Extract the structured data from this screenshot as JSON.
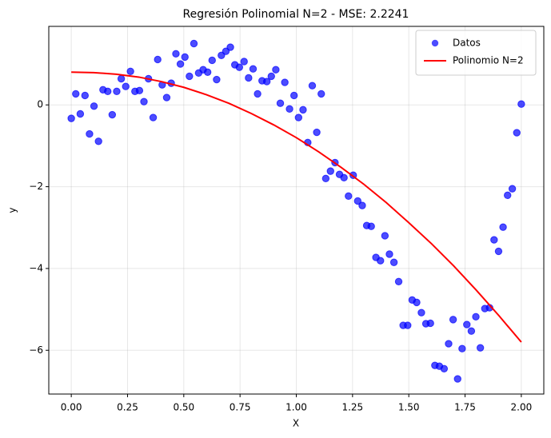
{
  "chart_data": {
    "type": "scatter",
    "title": "Regresión Polinomial N=2 - MSE: 2.2241",
    "xlabel": "X",
    "ylabel": "y",
    "xlim": [
      -0.1,
      2.1
    ],
    "ylim": [
      -7.07,
      1.92
    ],
    "xticks": [
      {
        "value": 0,
        "label": "0.00"
      },
      {
        "value": 0.25,
        "label": "0.25"
      },
      {
        "value": 0.5,
        "label": "0.50"
      },
      {
        "value": 0.75,
        "label": "0.75"
      },
      {
        "value": 1,
        "label": "1.00"
      },
      {
        "value": 1.25,
        "label": "1.25"
      },
      {
        "value": 1.5,
        "label": "1.50"
      },
      {
        "value": 1.75,
        "label": "1.75"
      },
      {
        "value": 2,
        "label": "2.00"
      }
    ],
    "yticks": [
      {
        "value": -6,
        "label": "−6"
      },
      {
        "value": -4,
        "label": "−4"
      },
      {
        "value": -2,
        "label": "−2"
      },
      0
    ],
    "grid": true,
    "legend": "upper right",
    "series": [
      {
        "name": "Datos",
        "type": "scatter",
        "color": "#0000ff",
        "x": [
          0.0,
          0.02,
          0.04,
          0.061,
          0.081,
          0.101,
          0.121,
          0.141,
          0.162,
          0.182,
          0.202,
          0.222,
          0.242,
          0.263,
          0.283,
          0.303,
          0.323,
          0.343,
          0.364,
          0.384,
          0.404,
          0.424,
          0.444,
          0.465,
          0.485,
          0.505,
          0.525,
          0.545,
          0.566,
          0.586,
          0.606,
          0.626,
          0.646,
          0.667,
          0.687,
          0.707,
          0.727,
          0.747,
          0.768,
          0.788,
          0.808,
          0.828,
          0.848,
          0.869,
          0.889,
          0.909,
          0.929,
          0.949,
          0.97,
          0.99,
          1.01,
          1.03,
          1.051,
          1.071,
          1.091,
          1.111,
          1.131,
          1.152,
          1.172,
          1.192,
          1.212,
          1.232,
          1.253,
          1.273,
          1.293,
          1.313,
          1.333,
          1.354,
          1.374,
          1.394,
          1.414,
          1.434,
          1.455,
          1.475,
          1.495,
          1.515,
          1.535,
          1.556,
          1.576,
          1.596,
          1.616,
          1.636,
          1.657,
          1.677,
          1.697,
          1.717,
          1.737,
          1.758,
          1.778,
          1.798,
          1.818,
          1.838,
          1.859,
          1.879,
          1.899,
          1.919,
          1.939,
          1.96,
          1.98,
          2.0
        ],
        "values": [
          -0.33,
          0.27,
          -0.22,
          0.23,
          -0.71,
          -0.03,
          -0.89,
          0.37,
          0.33,
          -0.24,
          0.33,
          0.64,
          0.45,
          0.82,
          0.33,
          0.35,
          0.08,
          0.64,
          -0.31,
          1.11,
          0.49,
          0.18,
          0.53,
          1.25,
          1.0,
          1.17,
          0.7,
          1.5,
          0.78,
          0.86,
          0.8,
          1.09,
          0.62,
          1.21,
          1.31,
          1.41,
          0.98,
          0.92,
          1.06,
          0.66,
          0.88,
          0.27,
          0.59,
          0.57,
          0.7,
          0.86,
          0.04,
          0.55,
          -0.1,
          0.23,
          -0.31,
          -0.12,
          -0.92,
          0.47,
          -0.67,
          0.27,
          -1.8,
          -1.62,
          -1.41,
          -1.7,
          -1.78,
          -2.23,
          -1.72,
          -2.35,
          -2.46,
          -2.95,
          -2.97,
          -3.73,
          -3.81,
          -3.2,
          -3.65,
          -3.85,
          -4.32,
          -5.39,
          -5.39,
          -4.77,
          -4.83,
          -5.08,
          -5.35,
          -5.34,
          -6.37,
          -6.39,
          -6.45,
          -5.84,
          -5.25,
          -6.7,
          -5.96,
          -5.37,
          -5.53,
          -5.18,
          -5.94,
          -4.98,
          -4.96,
          -3.3,
          -3.58,
          -2.99,
          -2.21,
          -2.05,
          -0.68,
          0.02
        ]
      },
      {
        "name": "Polinomio N=2",
        "type": "line",
        "color": "#ff0000",
        "x": [
          0,
          0.1,
          0.2,
          0.3,
          0.4,
          0.5,
          0.6,
          0.7,
          0.8,
          0.9,
          1.0,
          1.1,
          1.2,
          1.3,
          1.4,
          1.5,
          1.6,
          1.7,
          1.8,
          1.9,
          2.0
        ],
        "values": [
          0.8,
          0.79,
          0.75,
          0.68,
          0.57,
          0.43,
          0.25,
          0.04,
          -0.21,
          -0.49,
          -0.8,
          -1.15,
          -1.53,
          -1.94,
          -2.39,
          -2.88,
          -3.39,
          -3.94,
          -4.53,
          -5.15,
          -5.8
        ]
      }
    ]
  }
}
